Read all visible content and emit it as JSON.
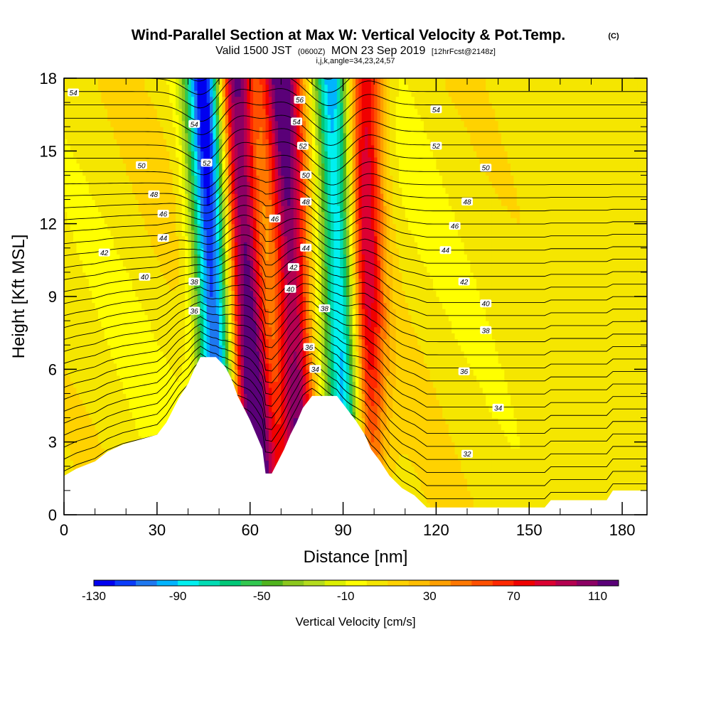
{
  "chart_data": {
    "type": "heatmap",
    "title": {
      "main": "Wind-Parallel Section at Max W: Vertical Velocity & Pot.Temp.",
      "copyright": "(C)"
    },
    "subtitle": {
      "valid_prefix": "Valid 1500 JST",
      "valid_utc": "(0600Z)",
      "valid_date": "MON 23 Sep 2019",
      "forecast": "[12hrFcst@2148z]",
      "indices": "i,j,k,angle=34,23,24,57"
    },
    "xlabel": "Distance [nm]",
    "ylabel": "Height [Kft MSL]",
    "xlim": [
      0,
      188
    ],
    "ylim": [
      0,
      18
    ],
    "x_ticks": [
      "0",
      "30",
      "60",
      "90",
      "120",
      "150",
      "180"
    ],
    "y_ticks": [
      "0",
      "3",
      "6",
      "9",
      "12",
      "15",
      "18"
    ],
    "colorbar": {
      "label": "Vertical Velocity [cm/s]",
      "range": [
        -130,
        120
      ],
      "tick_labels": [
        "-130",
        "-90",
        "-50",
        "-10",
        "30",
        "70",
        "110"
      ],
      "colors": [
        "#0000f0",
        "#0a3cfa",
        "#1e78f0",
        "#00b4ff",
        "#00f0f0",
        "#00dcb4",
        "#00c878",
        "#32c850",
        "#50b41e",
        "#8cc81e",
        "#b4dc1e",
        "#dcf000",
        "#ffff00",
        "#f5e600",
        "#ffd200",
        "#ffbe00",
        "#ffa000",
        "#ff7800",
        "#ff5000",
        "#ff2800",
        "#f00000",
        "#dc0032",
        "#b40050",
        "#8c0064",
        "#5a0078"
      ]
    },
    "terrain_height_kft": [
      [
        0,
        1.6
      ],
      [
        4,
        1.9
      ],
      [
        10,
        2.2
      ],
      [
        14,
        2.6
      ],
      [
        19,
        2.9
      ],
      [
        30,
        3.3
      ],
      [
        33,
        3.8
      ],
      [
        35,
        4.3
      ],
      [
        37,
        4.8
      ],
      [
        40,
        5.4
      ],
      [
        42,
        6.0
      ],
      [
        44,
        6.5
      ],
      [
        49,
        6.5
      ],
      [
        52,
        6.1
      ],
      [
        54,
        5.6
      ],
      [
        56,
        4.9
      ],
      [
        58,
        4.4
      ],
      [
        60,
        3.9
      ],
      [
        62,
        3.3
      ],
      [
        64,
        2.7
      ],
      [
        65,
        1.7
      ],
      [
        67,
        1.7
      ],
      [
        69,
        2.2
      ],
      [
        71,
        2.7
      ],
      [
        73,
        3.3
      ],
      [
        75,
        3.8
      ],
      [
        77,
        4.4
      ],
      [
        80,
        4.9
      ],
      [
        88,
        4.9
      ],
      [
        91,
        4.4
      ],
      [
        94,
        3.9
      ],
      [
        97,
        3.3
      ],
      [
        99,
        2.7
      ],
      [
        102,
        2.2
      ],
      [
        105,
        1.6
      ],
      [
        109,
        1.1
      ],
      [
        113,
        0.8
      ],
      [
        117,
        0.3
      ],
      [
        155,
        0.3
      ],
      [
        157,
        0.6
      ],
      [
        175,
        0.6
      ],
      [
        177,
        1.0
      ],
      [
        188,
        1.0
      ]
    ],
    "vertical_velocity_features": [
      {
        "name": "downdraft-west",
        "x_base": 51,
        "x_top": 45,
        "peak": -130
      },
      {
        "name": "updraft-main",
        "x_base": 63,
        "x_top": 55,
        "peak": 120
      },
      {
        "name": "updraft-lee",
        "x_base": 77,
        "x_top": 70,
        "peak": 110
      },
      {
        "name": "downdraft-east",
        "x_base": 93,
        "x_top": 86,
        "peak": -110
      },
      {
        "name": "updraft-east",
        "x_base": 97,
        "x_top": 97,
        "peak": 85
      }
    ],
    "theta_contour_labels": [
      {
        "text": "54",
        "x": 3,
        "y": 17.4
      },
      {
        "text": "54",
        "x": 42,
        "y": 16.1
      },
      {
        "text": "52",
        "x": 46,
        "y": 14.5
      },
      {
        "text": "50",
        "x": 25,
        "y": 14.4
      },
      {
        "text": "48",
        "x": 29,
        "y": 13.2
      },
      {
        "text": "46",
        "x": 32,
        "y": 12.4
      },
      {
        "text": "44",
        "x": 32,
        "y": 11.4
      },
      {
        "text": "42",
        "x": 13,
        "y": 10.8
      },
      {
        "text": "40",
        "x": 26,
        "y": 9.8
      },
      {
        "text": "38",
        "x": 42,
        "y": 9.6
      },
      {
        "text": "36",
        "x": 42,
        "y": 8.4
      },
      {
        "text": "56",
        "x": 76,
        "y": 17.1
      },
      {
        "text": "54",
        "x": 75,
        "y": 16.2
      },
      {
        "text": "52",
        "x": 77,
        "y": 15.2
      },
      {
        "text": "50",
        "x": 78,
        "y": 14.0
      },
      {
        "text": "48",
        "x": 78,
        "y": 12.9
      },
      {
        "text": "46",
        "x": 68,
        "y": 12.2
      },
      {
        "text": "44",
        "x": 78,
        "y": 11.0
      },
      {
        "text": "42",
        "x": 74,
        "y": 10.2
      },
      {
        "text": "40",
        "x": 73,
        "y": 9.3
      },
      {
        "text": "38",
        "x": 84,
        "y": 8.5
      },
      {
        "text": "36",
        "x": 79,
        "y": 6.9
      },
      {
        "text": "34",
        "x": 81,
        "y": 6.0
      },
      {
        "text": "54",
        "x": 120,
        "y": 16.7
      },
      {
        "text": "52",
        "x": 120,
        "y": 15.2
      },
      {
        "text": "50",
        "x": 136,
        "y": 14.3
      },
      {
        "text": "48",
        "x": 130,
        "y": 12.9
      },
      {
        "text": "46",
        "x": 126,
        "y": 11.9
      },
      {
        "text": "44",
        "x": 123,
        "y": 10.9
      },
      {
        "text": "42",
        "x": 129,
        "y": 9.6
      },
      {
        "text": "40",
        "x": 136,
        "y": 8.7
      },
      {
        "text": "38",
        "x": 136,
        "y": 7.6
      },
      {
        "text": "36",
        "x": 129,
        "y": 5.9
      },
      {
        "text": "34",
        "x": 140,
        "y": 4.4
      },
      {
        "text": "32",
        "x": 130,
        "y": 2.5
      }
    ],
    "legend": "colorbar-bottom",
    "grid": false
  }
}
